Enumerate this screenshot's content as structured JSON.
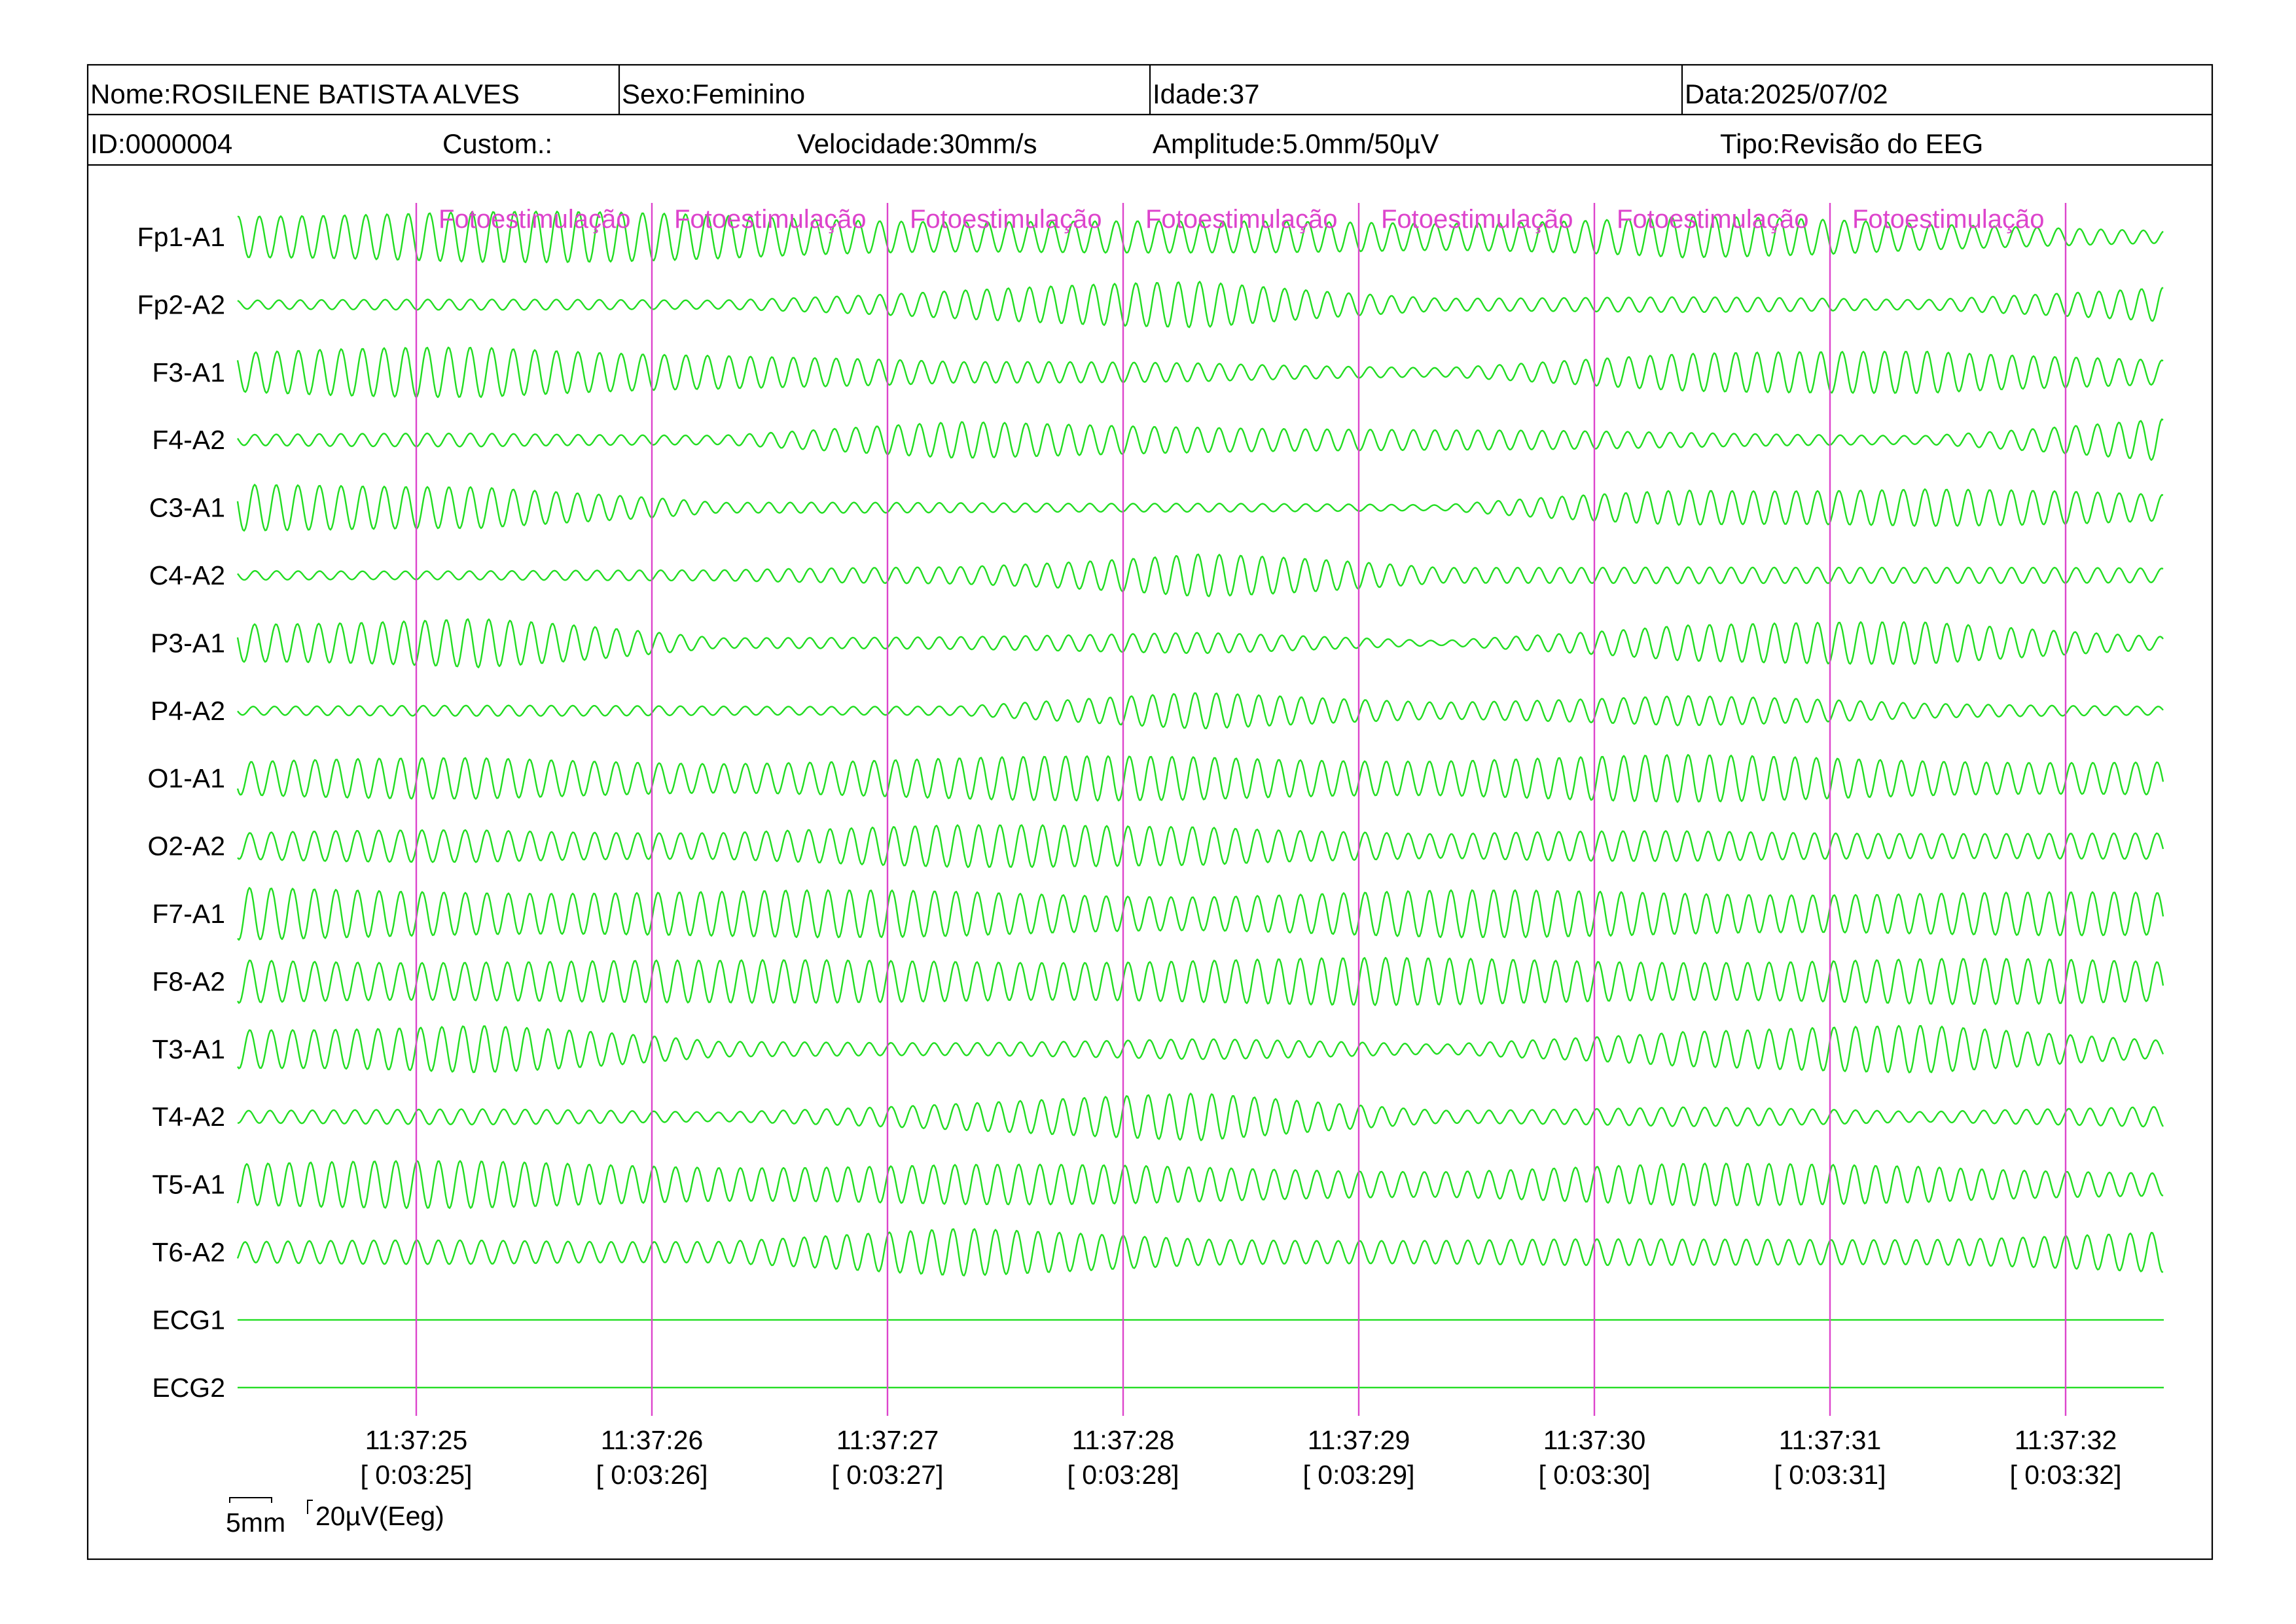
{
  "header": {
    "name": "Nome:ROSILENE BATISTA ALVES",
    "sex": "Sexo:Feminino",
    "age": "Idade:37",
    "date": "Data:2025/07/02",
    "id": "ID:0000004",
    "custom": "Custom.:",
    "speed": "Velocidade:30mm/s",
    "amplitude": "Amplitude:5.0mm/50µV",
    "type": "Tipo:Revisão do EEG"
  },
  "colors": {
    "trace": "#22dd22",
    "marker": "#dd44cc",
    "frame": "#000000"
  },
  "scale_bar": {
    "time": "5mm",
    "amplitude": "20µV(Eeg)"
  },
  "chart_data": {
    "type": "line",
    "title": "",
    "xlabel": "",
    "ylabel": "",
    "x_unit": "clock time (s)",
    "x_range": [
      "11:37:24.24",
      "11:37:32.42"
    ],
    "grid": false,
    "channels": [
      {
        "name": "Fp1-A1",
        "dominant_freq_hz": 11,
        "amplitude_envelope_uV": [
          100,
          100,
          90,
          70,
          60,
          60,
          90,
          50,
          30
        ]
      },
      {
        "name": "Fp2-A2",
        "dominant_freq_hz": 11,
        "amplitude_envelope_uV": [
          20,
          20,
          20,
          60,
          90,
          30,
          30,
          20,
          80
        ]
      },
      {
        "name": "F3-A1",
        "dominant_freq_hz": 11,
        "amplitude_envelope_uV": [
          80,
          100,
          80,
          40,
          40,
          20,
          70,
          100,
          50
        ]
      },
      {
        "name": "F4-A2",
        "dominant_freq_hz": 11,
        "amplitude_envelope_uV": [
          20,
          30,
          20,
          70,
          60,
          40,
          30,
          20,
          80
        ]
      },
      {
        "name": "C3-A1",
        "dominant_freq_hz": 11,
        "amplitude_envelope_uV": [
          90,
          100,
          20,
          20,
          20,
          10,
          80,
          80,
          50
        ]
      },
      {
        "name": "C4-A2",
        "dominant_freq_hz": 11,
        "amplitude_envelope_uV": [
          20,
          20,
          20,
          40,
          90,
          30,
          40,
          30,
          30
        ]
      },
      {
        "name": "P3-A1",
        "dominant_freq_hz": 11,
        "amplitude_envelope_uV": [
          90,
          100,
          20,
          30,
          40,
          10,
          80,
          80,
          30
        ]
      },
      {
        "name": "P4-A2",
        "dominant_freq_hz": 11,
        "amplitude_envelope_uV": [
          20,
          20,
          20,
          20,
          70,
          40,
          60,
          30,
          20
        ]
      },
      {
        "name": "O1-A1",
        "dominant_freq_hz": 11,
        "amplitude_envelope_uV": [
          70,
          80,
          70,
          80,
          90,
          80,
          90,
          80,
          70
        ]
      },
      {
        "name": "O2-A2",
        "dominant_freq_hz": 11,
        "amplitude_envelope_uV": [
          50,
          70,
          60,
          80,
          90,
          50,
          60,
          60,
          50
        ]
      },
      {
        "name": "F7-A1",
        "dominant_freq_hz": 11,
        "amplitude_envelope_uV": [
          100,
          100,
          90,
          90,
          80,
          90,
          90,
          90,
          80
        ]
      },
      {
        "name": "F8-A2",
        "dominant_freq_hz": 11,
        "amplitude_envelope_uV": [
          90,
          90,
          80,
          90,
          90,
          90,
          90,
          90,
          80
        ]
      },
      {
        "name": "T3-A1",
        "dominant_freq_hz": 11,
        "amplitude_envelope_uV": [
          90,
          100,
          30,
          30,
          40,
          20,
          80,
          90,
          40
        ]
      },
      {
        "name": "T4-A2",
        "dominant_freq_hz": 11,
        "amplitude_envelope_uV": [
          30,
          30,
          20,
          60,
          90,
          30,
          40,
          20,
          50
        ]
      },
      {
        "name": "T5-A1",
        "dominant_freq_hz": 11,
        "amplitude_envelope_uV": [
          90,
          90,
          80,
          80,
          70,
          60,
          80,
          80,
          50
        ]
      },
      {
        "name": "T6-A2",
        "dominant_freq_hz": 11,
        "amplitude_envelope_uV": [
          40,
          50,
          50,
          90,
          60,
          50,
          50,
          60,
          80
        ]
      },
      {
        "name": "ECG1",
        "dominant_freq_hz": 0,
        "amplitude_envelope_uV": [
          0,
          0,
          0,
          0,
          0,
          0,
          0,
          0,
          0
        ]
      },
      {
        "name": "ECG2",
        "dominant_freq_hz": 0,
        "amplitude_envelope_uV": [
          0,
          0,
          0,
          0,
          0,
          0,
          0,
          0,
          0
        ]
      }
    ],
    "time_markers": [
      {
        "time": "11:37:25",
        "elapsed": "[ 0:03:25]"
      },
      {
        "time": "11:37:26",
        "elapsed": "[ 0:03:26]"
      },
      {
        "time": "11:37:27",
        "elapsed": "[ 0:03:27]"
      },
      {
        "time": "11:37:28",
        "elapsed": "[ 0:03:28]"
      },
      {
        "time": "11:37:29",
        "elapsed": "[ 0:03:29]"
      },
      {
        "time": "11:37:30",
        "elapsed": "[ 0:03:30]"
      },
      {
        "time": "11:37:31",
        "elapsed": "[ 0:03:31]"
      },
      {
        "time": "11:37:32",
        "elapsed": "[ 0:03:32]"
      }
    ],
    "events": [
      {
        "label": "Fotoestimulação",
        "time": "11:37:25"
      },
      {
        "label": "Fotoestimulação",
        "time": "11:37:26"
      },
      {
        "label": "Fotoestimulação",
        "time": "11:37:27"
      },
      {
        "label": "Fotoestimulação",
        "time": "11:37:28"
      },
      {
        "label": "Fotoestimulação",
        "time": "11:37:29"
      },
      {
        "label": "Fotoestimulação",
        "time": "11:37:30"
      },
      {
        "label": "Fotoestimulação",
        "time": "11:37:31"
      }
    ]
  }
}
